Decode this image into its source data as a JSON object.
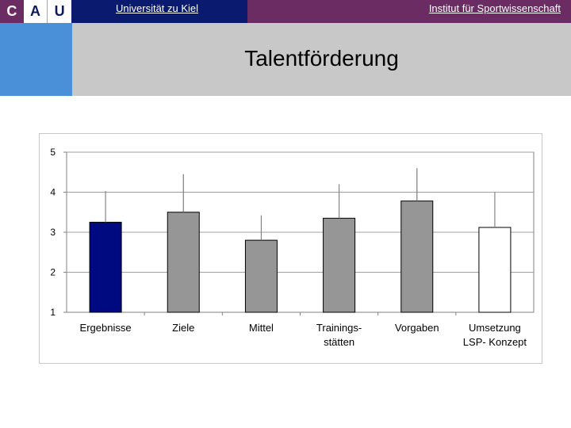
{
  "header": {
    "logo_letters": [
      "C",
      "A",
      "U"
    ],
    "university": "Universität zu Kiel",
    "institute": "Institut für Sportwissenschaft",
    "title": "Talentförderung"
  },
  "colors": {
    "navy_bar": "#0a1a6e",
    "purple_bar": "#6b2b63",
    "blue_panel": "#4a90d9",
    "grey_band": "#c8c8c8",
    "highlight_bar": "#000a80",
    "grey_bar": "#969696",
    "white_bar": "#ffffff"
  },
  "chart_data": {
    "type": "bar",
    "title": "",
    "xlabel": "",
    "ylabel": "",
    "ylim": [
      1,
      5
    ],
    "yticks": [
      1,
      2,
      3,
      4,
      5
    ],
    "grid": true,
    "categories": [
      [
        "Ergebnisse"
      ],
      [
        "Ziele"
      ],
      [
        "Mittel"
      ],
      [
        "Trainings-",
        "stätten"
      ],
      [
        "Vorgaben"
      ],
      [
        "Umsetzung",
        "LSP- Konzept"
      ]
    ],
    "values": [
      3.25,
      3.5,
      2.8,
      3.35,
      3.78,
      3.12
    ],
    "error": [
      0.78,
      0.95,
      0.62,
      0.85,
      0.82,
      0.88
    ],
    "bar_colors": [
      "#000a80",
      "#969696",
      "#969696",
      "#969696",
      "#969696",
      "#ffffff"
    ]
  }
}
